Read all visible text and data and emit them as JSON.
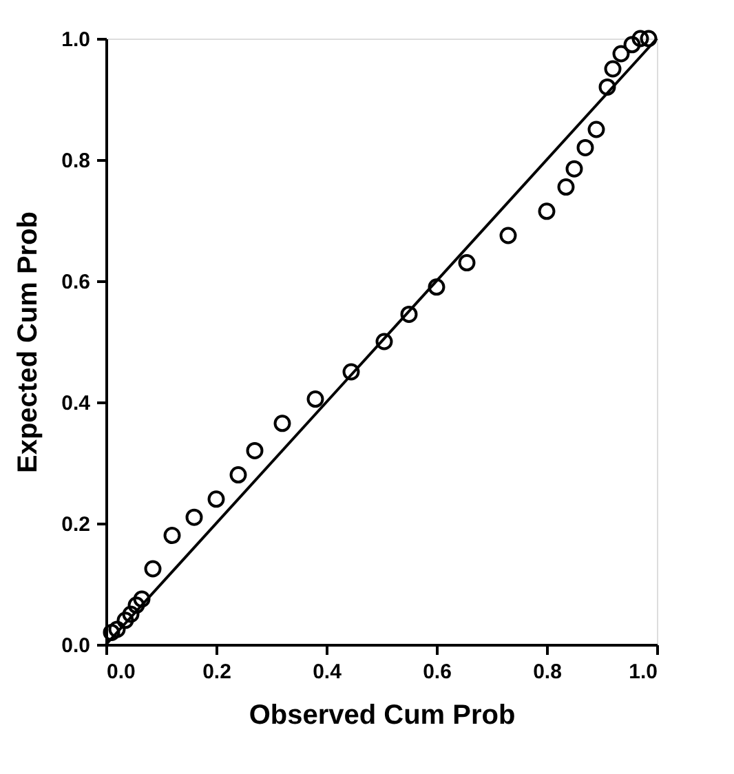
{
  "chart_data": {
    "type": "scatter",
    "xlabel": "Observed Cum Prob",
    "ylabel": "Expected Cum Prob",
    "xlim": [
      0,
      1
    ],
    "ylim": [
      0,
      1
    ],
    "xticks": [
      {
        "value": 0,
        "label": "0.0"
      },
      {
        "value": 0.2,
        "label": "0.2"
      },
      {
        "value": 0.4,
        "label": "0.4"
      },
      {
        "value": 0.6,
        "label": "0.6"
      },
      {
        "value": 0.8,
        "label": "0.8"
      },
      {
        "value": 1,
        "label": "1.0"
      }
    ],
    "yticks": [
      {
        "value": 0,
        "label": "0.0"
      },
      {
        "value": 0.2,
        "label": "0.2"
      },
      {
        "value": 0.4,
        "label": "0.4"
      },
      {
        "value": 0.6,
        "label": "0.6"
      },
      {
        "value": 0.8,
        "label": "0.8"
      },
      {
        "value": 1,
        "label": "1.0"
      }
    ],
    "grid": false,
    "series": [
      {
        "color": "#000000",
        "marker": "circle",
        "x": [
          0.01,
          0.02,
          0.035,
          0.045,
          0.055,
          0.065,
          0.085,
          0.12,
          0.16,
          0.2,
          0.24,
          0.27,
          0.32,
          0.38,
          0.445,
          0.505,
          0.55,
          0.6,
          0.655,
          0.73,
          0.8,
          0.835,
          0.85,
          0.87,
          0.89,
          0.91,
          0.92,
          0.935,
          0.955,
          0.97,
          0.985
        ],
        "values": [
          0.02,
          0.025,
          0.04,
          0.05,
          0.065,
          0.075,
          0.125,
          0.18,
          0.21,
          0.24,
          0.28,
          0.32,
          0.365,
          0.405,
          0.45,
          0.5,
          0.545,
          0.59,
          0.63,
          0.675,
          0.715,
          0.755,
          0.785,
          0.82,
          0.85,
          0.92,
          0.95,
          0.975,
          0.99,
          1.0,
          1.0
        ]
      },
      {
        "type": "line",
        "color": "#000000",
        "x": [
          0,
          1
        ],
        "values": [
          0,
          1
        ],
        "line_style": "solid"
      }
    ]
  }
}
